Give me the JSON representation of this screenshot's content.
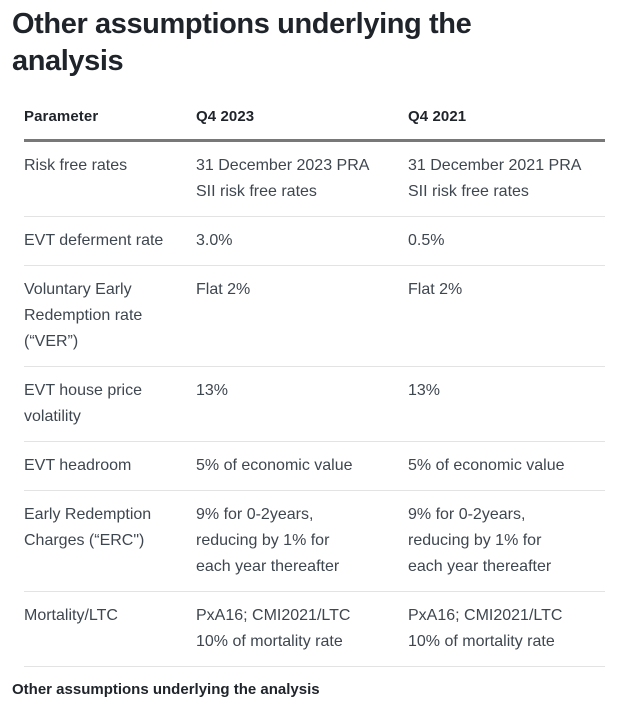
{
  "header": {
    "title": "Other assumptions underlying the\nanalysis"
  },
  "chart_data": {
    "type": "table",
    "title": "Other assumptions underlying the analysis",
    "columns": [
      "Parameter",
      "Q4 2023",
      "Q4 2021"
    ],
    "rows": [
      {
        "parameter": "Risk free rates",
        "q4_2023": "31 December 2023 PRA\nSII risk free rates",
        "q4_2021": "31 December 2021 PRA\nSII risk free rates"
      },
      {
        "parameter": "EVT deferment rate",
        "q4_2023": "3.0%",
        "q4_2021": "0.5%"
      },
      {
        "parameter": "Voluntary Early\nRedemption rate\n(“VER”)",
        "q4_2023": "Flat 2%",
        "q4_2021": "Flat 2%"
      },
      {
        "parameter": "EVT house price\nvolatility",
        "q4_2023": "13%",
        "q4_2021": "13%"
      },
      {
        "parameter": "EVT headroom",
        "q4_2023": "5% of economic value",
        "q4_2021": "5% of economic value"
      },
      {
        "parameter": "Early Redemption\nCharges (“ERC\")",
        "q4_2023": "9% for 0-2years,\nreducing by 1% for\neach year thereafter",
        "q4_2021": "9% for 0-2years,\nreducing by 1% for\neach year thereafter"
      },
      {
        "parameter": "Mortality/LTC",
        "q4_2023": "PxA16; CMI2021/LTC\n10% of mortality rate",
        "q4_2021": "PxA16; CMI2021/LTC\n10% of mortality rate"
      }
    ]
  },
  "footer": {
    "caption": "Other assumptions underlying the analysis"
  },
  "colors": {
    "background": "#ffffff",
    "title_text": "#1f242b",
    "body_text": "#3e464f",
    "header_rule": "#787878",
    "row_rule": "#e3e3e3"
  }
}
